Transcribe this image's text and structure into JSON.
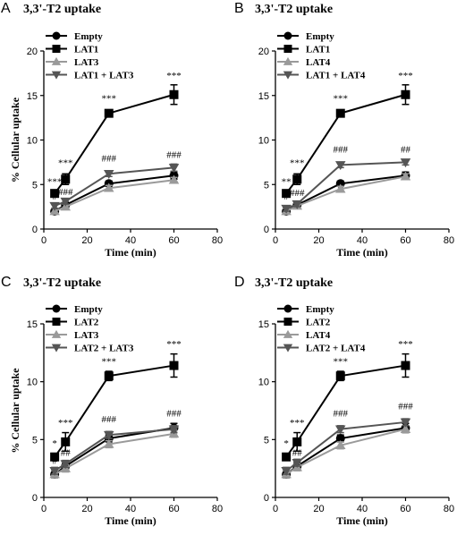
{
  "figure": {
    "ylabel_shared": "% Cellular uptake"
  },
  "colors": {
    "empty": "#000000",
    "lat_main": "#000000",
    "lat_partner": "#9a9a9a",
    "combo": "#555555"
  },
  "chart_data": [
    {
      "panel": "A",
      "type": "line",
      "title": "3,3'-T2 uptake",
      "xlabel": "Time (min)",
      "ylabel": "% Cellular uptake",
      "xlim": [
        0,
        80
      ],
      "ylim": [
        0,
        20
      ],
      "xticks": [
        "0",
        "20",
        "40",
        "60",
        "80"
      ],
      "yticks": [
        "0",
        "5",
        "10",
        "15",
        "20"
      ],
      "legend_position": "top-left",
      "x": [
        5,
        10,
        30,
        60
      ],
      "series": [
        {
          "name": "Empty",
          "marker": "circle",
          "values": [
            2.0,
            2.7,
            5.1,
            6.0
          ],
          "err": [
            0.3,
            0.3,
            0.3,
            0.4
          ]
        },
        {
          "name": "LAT1",
          "marker": "square",
          "values": [
            4.0,
            5.6,
            13.0,
            15.1
          ],
          "err": [
            0.3,
            0.6,
            0.3,
            1.1
          ]
        },
        {
          "name": "LAT3",
          "marker": "triangle-up",
          "values": [
            2.0,
            2.5,
            4.6,
            5.5
          ],
          "err": [
            0.3,
            0.3,
            0.3,
            0.3
          ]
        },
        {
          "name": "LAT1 + LAT3",
          "marker": "triangle-down",
          "values": [
            2.6,
            3.1,
            6.2,
            6.9
          ],
          "err": [
            0.3,
            0.3,
            0.3,
            0.4
          ]
        }
      ],
      "annotations": [
        {
          "x": 5,
          "y": 5.0,
          "text": "***"
        },
        {
          "x": 10,
          "y": 7.1,
          "text": "***"
        },
        {
          "x": 30,
          "y": 14.3,
          "text": "***"
        },
        {
          "x": 60,
          "y": 16.9,
          "text": "***"
        },
        {
          "x": 5,
          "y": 3.3,
          "text": "#"
        },
        {
          "x": 10,
          "y": 3.8,
          "text": "###"
        },
        {
          "x": 30,
          "y": 7.6,
          "text": "###"
        },
        {
          "x": 60,
          "y": 8.0,
          "text": "###"
        }
      ]
    },
    {
      "panel": "B",
      "type": "line",
      "title": "3,3'-T2 uptake",
      "xlabel": "Time (min)",
      "ylabel": "",
      "xlim": [
        0,
        80
      ],
      "ylim": [
        0,
        20
      ],
      "xticks": [
        "0",
        "20",
        "40",
        "60",
        "80"
      ],
      "yticks": [
        "0",
        "5",
        "10",
        "15",
        "20"
      ],
      "legend_position": "top-left",
      "x": [
        5,
        10,
        30,
        60
      ],
      "series": [
        {
          "name": "Empty",
          "marker": "circle",
          "values": [
            2.0,
            2.7,
            5.1,
            6.0
          ],
          "err": [
            0.3,
            0.3,
            0.3,
            0.4
          ]
        },
        {
          "name": "LAT1",
          "marker": "square",
          "values": [
            4.0,
            5.6,
            13.0,
            15.1
          ],
          "err": [
            0.3,
            0.6,
            0.3,
            1.1
          ]
        },
        {
          "name": "LAT4",
          "marker": "triangle-up",
          "values": [
            2.0,
            2.6,
            4.5,
            5.9
          ],
          "err": [
            0.3,
            0.3,
            0.3,
            0.3
          ]
        },
        {
          "name": "LAT1 + LAT4",
          "marker": "triangle-down",
          "values": [
            2.3,
            2.8,
            7.2,
            7.5
          ],
          "err": [
            0.3,
            0.3,
            0.3,
            0.3
          ]
        }
      ],
      "annotations": [
        {
          "x": 5,
          "y": 5.0,
          "text": "**"
        },
        {
          "x": 10,
          "y": 7.1,
          "text": "***"
        },
        {
          "x": 30,
          "y": 14.3,
          "text": "***"
        },
        {
          "x": 60,
          "y": 16.9,
          "text": "***"
        },
        {
          "x": 5,
          "y": 3.3,
          "text": "#"
        },
        {
          "x": 10,
          "y": 3.7,
          "text": "###"
        },
        {
          "x": 30,
          "y": 8.6,
          "text": "###"
        },
        {
          "x": 60,
          "y": 8.6,
          "text": "##"
        }
      ]
    },
    {
      "panel": "C",
      "type": "line",
      "title": "3,3'-T2 uptake",
      "xlabel": "Time (min)",
      "ylabel": "% Cellular uptake",
      "xlim": [
        0,
        80
      ],
      "ylim": [
        0,
        15
      ],
      "xticks": [
        "0",
        "20",
        "40",
        "60",
        "80"
      ],
      "yticks": [
        "0",
        "5",
        "10",
        "15"
      ],
      "legend_position": "top-left",
      "x": [
        5,
        10,
        30,
        60
      ],
      "series": [
        {
          "name": "Empty",
          "marker": "circle",
          "values": [
            2.0,
            2.7,
            5.1,
            6.0
          ],
          "err": [
            0.3,
            0.3,
            0.3,
            0.4
          ]
        },
        {
          "name": "LAT2",
          "marker": "square",
          "values": [
            3.5,
            4.8,
            10.5,
            11.4
          ],
          "err": [
            0.3,
            0.8,
            0.4,
            1.0
          ]
        },
        {
          "name": "LAT3",
          "marker": "triangle-up",
          "values": [
            2.0,
            2.5,
            4.6,
            5.5
          ],
          "err": [
            0.3,
            0.3,
            0.3,
            0.3
          ]
        },
        {
          "name": "LAT2 + LAT3",
          "marker": "triangle-down",
          "values": [
            2.3,
            2.9,
            5.4,
            5.9
          ],
          "err": [
            0.3,
            0.3,
            0.3,
            0.3
          ]
        }
      ],
      "annotations": [
        {
          "x": 5,
          "y": 4.4,
          "text": "*"
        },
        {
          "x": 10,
          "y": 6.2,
          "text": "***"
        },
        {
          "x": 30,
          "y": 11.5,
          "text": "***"
        },
        {
          "x": 60,
          "y": 13.0,
          "text": "***"
        },
        {
          "x": 5,
          "y": 2.9,
          "text": "#"
        },
        {
          "x": 10,
          "y": 3.6,
          "text": "##"
        },
        {
          "x": 30,
          "y": 6.5,
          "text": "###"
        },
        {
          "x": 60,
          "y": 7.0,
          "text": "###"
        }
      ]
    },
    {
      "panel": "D",
      "type": "line",
      "title": "3,3'-T2 uptake",
      "xlabel": "Time (min)",
      "ylabel": "",
      "xlim": [
        0,
        80
      ],
      "ylim": [
        0,
        15
      ],
      "xticks": [
        "0",
        "20",
        "40",
        "60",
        "80"
      ],
      "yticks": [
        "0",
        "5",
        "10",
        "15"
      ],
      "legend_position": "top-left",
      "x": [
        5,
        10,
        30,
        60
      ],
      "series": [
        {
          "name": "Empty",
          "marker": "circle",
          "values": [
            2.0,
            2.7,
            5.1,
            6.0
          ],
          "err": [
            0.3,
            0.3,
            0.3,
            0.4
          ]
        },
        {
          "name": "LAT2",
          "marker": "square",
          "values": [
            3.5,
            4.8,
            10.5,
            11.4
          ],
          "err": [
            0.3,
            0.8,
            0.4,
            1.0
          ]
        },
        {
          "name": "LAT4",
          "marker": "triangle-up",
          "values": [
            2.0,
            2.6,
            4.5,
            5.9
          ],
          "err": [
            0.3,
            0.3,
            0.3,
            0.3
          ]
        },
        {
          "name": "LAT2 + LAT4",
          "marker": "triangle-down",
          "values": [
            2.3,
            3.0,
            5.9,
            6.5
          ],
          "err": [
            0.3,
            0.3,
            0.3,
            0.3
          ]
        }
      ],
      "annotations": [
        {
          "x": 5,
          "y": 4.4,
          "text": "*"
        },
        {
          "x": 10,
          "y": 6.2,
          "text": "***"
        },
        {
          "x": 30,
          "y": 11.5,
          "text": "***"
        },
        {
          "x": 60,
          "y": 13.0,
          "text": "***"
        },
        {
          "x": 10,
          "y": 3.6,
          "text": "##"
        },
        {
          "x": 30,
          "y": 7.0,
          "text": "###"
        },
        {
          "x": 60,
          "y": 7.6,
          "text": "###"
        }
      ]
    }
  ]
}
